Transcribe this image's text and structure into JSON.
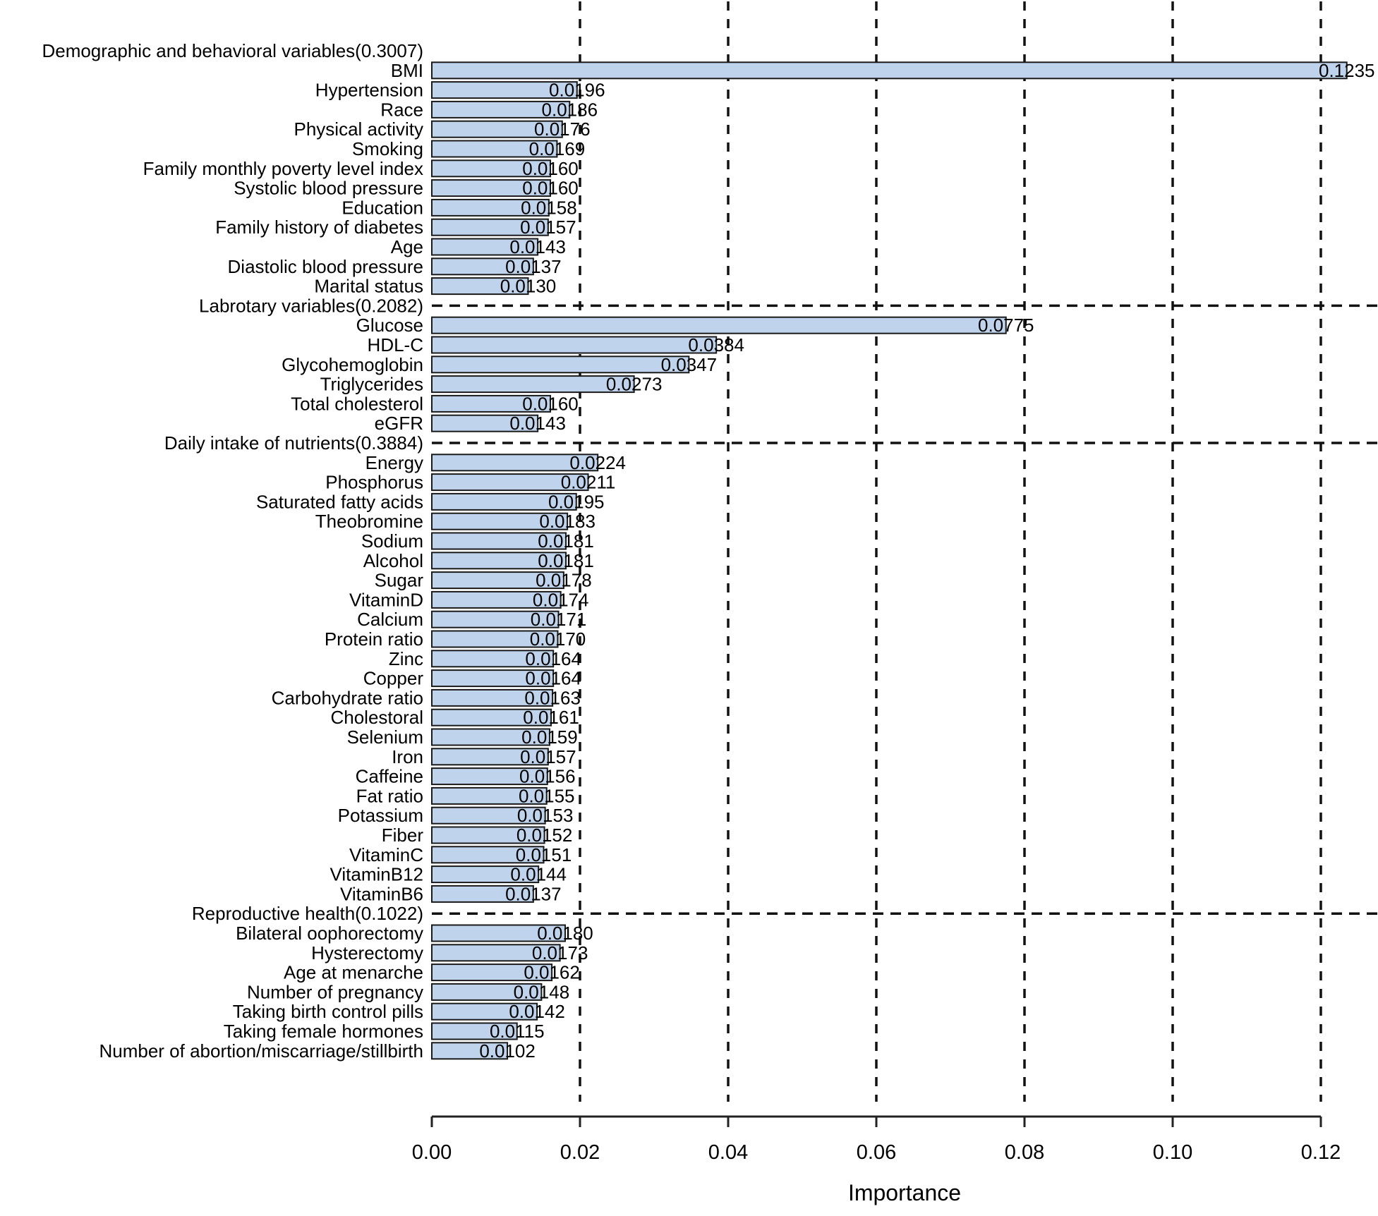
{
  "chart_data": {
    "type": "bar",
    "orientation": "horizontal",
    "title": "",
    "xlabel": "Importance",
    "ylabel": "",
    "xlim": [
      0,
      0.1277
    ],
    "xticks": [
      0.0,
      0.02,
      0.04,
      0.06,
      0.08,
      0.1,
      0.12
    ],
    "xtick_labels": [
      "0.00",
      "0.02",
      "0.04",
      "0.06",
      "0.08",
      "0.10",
      "0.12"
    ],
    "grid": "dashed vertical gridlines at each x tick; dashed horizontal divider at each group header row",
    "legend": "none",
    "bar_fill": "#bfd4ec",
    "bar_stroke": "#1a1a1a",
    "groups": [
      {
        "header": "Demographic and behavioral variables(0.3007)",
        "bars": [
          {
            "label": "BMI",
            "value": 0.1235,
            "value_label": "0.1235"
          },
          {
            "label": "Hypertension",
            "value": 0.0196,
            "value_label": "0.0196"
          },
          {
            "label": "Race",
            "value": 0.0186,
            "value_label": "0.0186"
          },
          {
            "label": "Physical activity",
            "value": 0.0176,
            "value_label": "0.0176"
          },
          {
            "label": "Smoking",
            "value": 0.0169,
            "value_label": "0.0169"
          },
          {
            "label": "Family monthly poverty level index",
            "value": 0.016,
            "value_label": "0.0160"
          },
          {
            "label": "Systolic blood pressure",
            "value": 0.016,
            "value_label": "0.0160"
          },
          {
            "label": "Education",
            "value": 0.0158,
            "value_label": "0.0158"
          },
          {
            "label": "Family history of diabetes",
            "value": 0.0157,
            "value_label": "0.0157"
          },
          {
            "label": "Age",
            "value": 0.0143,
            "value_label": "0.0143"
          },
          {
            "label": "Diastolic blood pressure",
            "value": 0.0137,
            "value_label": "0.0137"
          },
          {
            "label": "Marital status",
            "value": 0.013,
            "value_label": "0.0130"
          }
        ]
      },
      {
        "header": "Labrotary variables(0.2082)",
        "bars": [
          {
            "label": "Glucose",
            "value": 0.0775,
            "value_label": "0.0775"
          },
          {
            "label": "HDL-C",
            "value": 0.0384,
            "value_label": "0.0384"
          },
          {
            "label": "Glycohemoglobin",
            "value": 0.0347,
            "value_label": "0.0347"
          },
          {
            "label": "Triglycerides",
            "value": 0.0273,
            "value_label": "0.0273"
          },
          {
            "label": "Total cholesterol",
            "value": 0.016,
            "value_label": "0.0160"
          },
          {
            "label": "eGFR",
            "value": 0.0143,
            "value_label": "0.0143"
          }
        ]
      },
      {
        "header": "Daily intake of nutrients(0.3884)",
        "bars": [
          {
            "label": "Energy",
            "value": 0.0224,
            "value_label": "0.0224"
          },
          {
            "label": "Phosphorus",
            "value": 0.0211,
            "value_label": "0.0211"
          },
          {
            "label": "Saturated fatty acids",
            "value": 0.0195,
            "value_label": "0.0195"
          },
          {
            "label": "Theobromine",
            "value": 0.0183,
            "value_label": "0.0183"
          },
          {
            "label": "Sodium",
            "value": 0.0181,
            "value_label": "0.0181"
          },
          {
            "label": "Alcohol",
            "value": 0.0181,
            "value_label": "0.0181"
          },
          {
            "label": "Sugar",
            "value": 0.0178,
            "value_label": "0.0178"
          },
          {
            "label": "VitaminD",
            "value": 0.0174,
            "value_label": "0.0174"
          },
          {
            "label": "Calcium",
            "value": 0.0171,
            "value_label": "0.0171"
          },
          {
            "label": "Protein ratio",
            "value": 0.017,
            "value_label": "0.0170"
          },
          {
            "label": "Zinc",
            "value": 0.0164,
            "value_label": "0.0164"
          },
          {
            "label": "Copper",
            "value": 0.0164,
            "value_label": "0.0164"
          },
          {
            "label": "Carbohydrate ratio",
            "value": 0.0163,
            "value_label": "0.0163"
          },
          {
            "label": "Cholestoral",
            "value": 0.0161,
            "value_label": "0.0161"
          },
          {
            "label": "Selenium",
            "value": 0.0159,
            "value_label": "0.0159"
          },
          {
            "label": "Iron",
            "value": 0.0157,
            "value_label": "0.0157"
          },
          {
            "label": "Caffeine",
            "value": 0.0156,
            "value_label": "0.0156"
          },
          {
            "label": "Fat ratio",
            "value": 0.0155,
            "value_label": "0.0155"
          },
          {
            "label": "Potassium",
            "value": 0.0153,
            "value_label": "0.0153"
          },
          {
            "label": "Fiber",
            "value": 0.0152,
            "value_label": "0.0152"
          },
          {
            "label": "VitaminC",
            "value": 0.0151,
            "value_label": "0.0151"
          },
          {
            "label": "VitaminB12",
            "value": 0.0144,
            "value_label": "0.0144"
          },
          {
            "label": "VitaminB6",
            "value": 0.0137,
            "value_label": "0.0137"
          }
        ]
      },
      {
        "header": "Reproductive health(0.1022)",
        "bars": [
          {
            "label": "Bilateral oophorectomy",
            "value": 0.018,
            "value_label": "0.0180"
          },
          {
            "label": "Hysterectomy",
            "value": 0.0173,
            "value_label": "0.0173"
          },
          {
            "label": "Age at menarche",
            "value": 0.0162,
            "value_label": "0.0162"
          },
          {
            "label": "Number of pregnancy",
            "value": 0.0148,
            "value_label": "0.0148"
          },
          {
            "label": "Taking birth control pills",
            "value": 0.0142,
            "value_label": "0.0142"
          },
          {
            "label": "Taking female hormones",
            "value": 0.0115,
            "value_label": "0.0115"
          },
          {
            "label": "Number of abortion/miscarriage/stillbirth",
            "value": 0.0102,
            "value_label": "0.0102"
          }
        ]
      }
    ]
  }
}
